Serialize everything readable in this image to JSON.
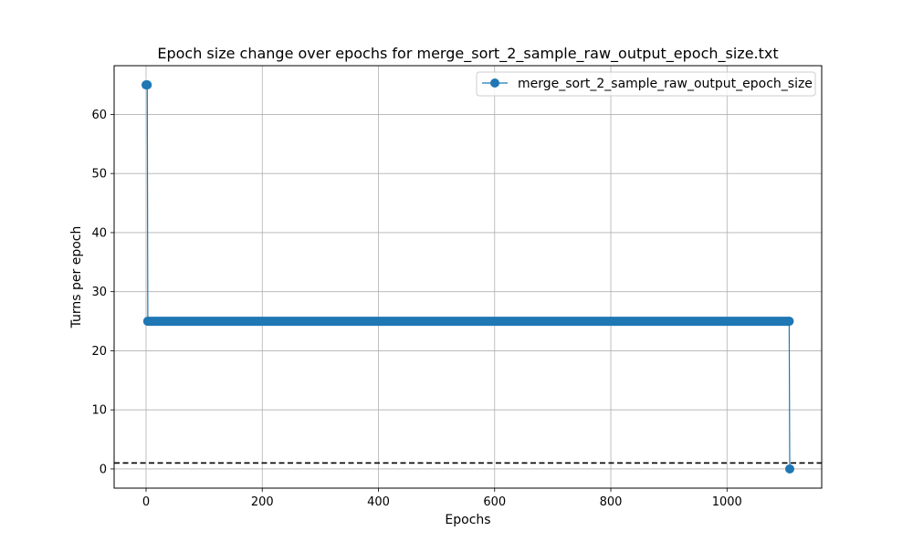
{
  "chart_data": {
    "type": "line",
    "title": "Epoch size change over epochs for merge_sort_2_sample_raw_output_epoch_size.txt",
    "xlabel": "Epochs",
    "ylabel": "Turns per epoch",
    "xlim": [
      -55,
      1163
    ],
    "ylim": [
      -3.25,
      68.25
    ],
    "xticks": [
      0,
      200,
      400,
      600,
      800,
      1000
    ],
    "yticks": [
      0,
      10,
      20,
      30,
      40,
      50,
      60
    ],
    "xtick_labels": [
      "0",
      "200",
      "400",
      "600",
      "800",
      "1000"
    ],
    "ytick_labels": [
      "0",
      "10",
      "20",
      "30",
      "40",
      "50",
      "60"
    ],
    "grid": true,
    "legend_position": "top-right",
    "series": [
      {
        "name": "merge_sort_2_sample_raw_output_epoch_size",
        "color": "#1f77b4",
        "marker": "circle",
        "points": [
          {
            "x": 0,
            "y": 65
          },
          {
            "x": 1,
            "y": 65
          },
          {
            "x": 2,
            "y": 65
          },
          {
            "x": 3,
            "y": 25
          },
          {
            "x": 1107,
            "y": 25
          },
          {
            "x": 1108,
            "y": 0
          }
        ],
        "constant_segment": {
          "x_start": 3,
          "x_end": 1107,
          "y": 25
        }
      }
    ],
    "reference_lines": [
      {
        "orientation": "horizontal",
        "y": 1,
        "style": "dashed",
        "color": "#000000"
      }
    ]
  }
}
